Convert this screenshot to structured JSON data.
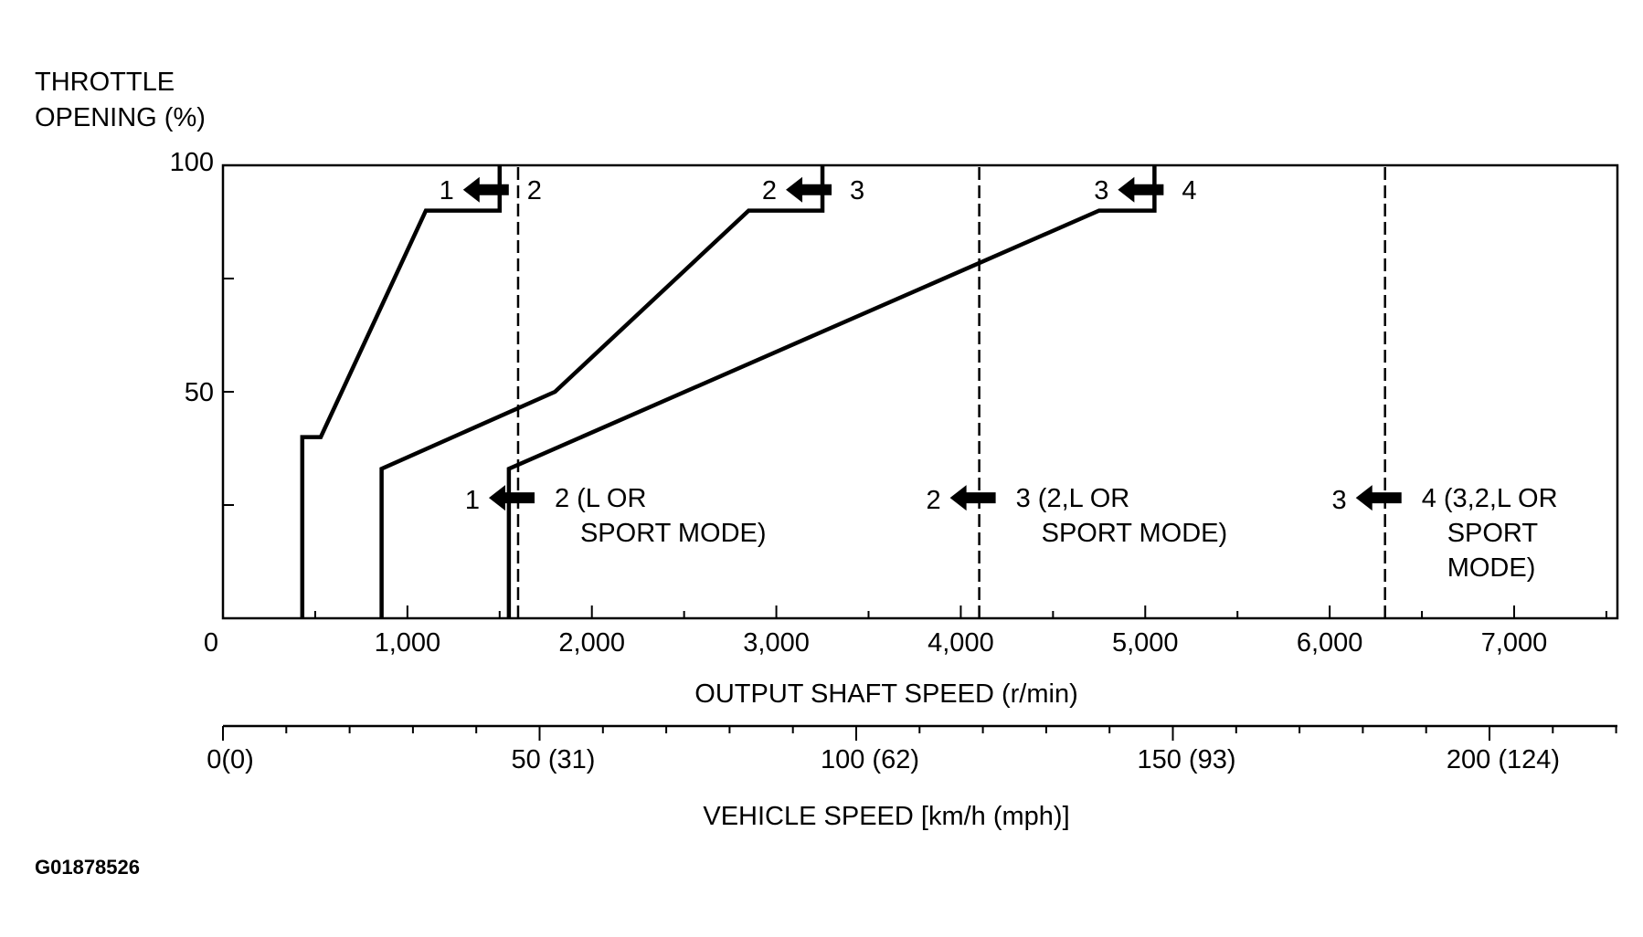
{
  "chart_data": {
    "type": "line",
    "ylabel_lines": [
      "THROTTLE",
      "OPENING (%)"
    ],
    "xlabel": "OUTPUT SHAFT SPEED (r/min)",
    "x2label": "VEHICLE SPEED [km/h (mph)]",
    "xlim": [
      0,
      7700
    ],
    "ylim": [
      0,
      100
    ],
    "x_ticks": [
      {
        "value": 0,
        "label": "0"
      },
      {
        "value": 1000,
        "label": "1,000"
      },
      {
        "value": 2000,
        "label": "2,000"
      },
      {
        "value": 3000,
        "label": "3,000"
      },
      {
        "value": 4000,
        "label": "4,000"
      },
      {
        "value": 5000,
        "label": "5,000"
      },
      {
        "value": 6000,
        "label": "6,000"
      },
      {
        "value": 7000,
        "label": "7,000"
      }
    ],
    "y_ticks": [
      {
        "value": 50,
        "label": "50"
      },
      {
        "value": 100,
        "label": "100"
      }
    ],
    "vehicle_speed_ticks": [
      {
        "kmh": 0,
        "label": "0(0)"
      },
      {
        "kmh": 50,
        "label": "50 (31)"
      },
      {
        "kmh": 100,
        "label": "100 (62)"
      },
      {
        "kmh": 150,
        "label": "150 (93)"
      },
      {
        "kmh": 200,
        "label": "200 (124)"
      }
    ],
    "vehicle_speed_max_kmh": 220,
    "upshift_lines": [
      {
        "id": "1-2",
        "points": [
          [
            430,
            0
          ],
          [
            430,
            40
          ],
          [
            530,
            40
          ],
          [
            1100,
            90
          ],
          [
            1500,
            90
          ],
          [
            1500,
            100
          ]
        ]
      },
      {
        "id": "2-3",
        "points": [
          [
            860,
            0
          ],
          [
            860,
            33
          ],
          [
            1800,
            50
          ],
          [
            2850,
            90
          ],
          [
            3250,
            90
          ],
          [
            3250,
            100
          ]
        ]
      },
      {
        "id": "3-4",
        "points": [
          [
            1550,
            0
          ],
          [
            1550,
            33
          ],
          [
            4750,
            90
          ],
          [
            5050,
            90
          ],
          [
            5050,
            100
          ]
        ]
      }
    ],
    "downshift_lines": [
      {
        "id": "2-1",
        "points": [
          [
            1600,
            0
          ],
          [
            1600,
            100
          ]
        ]
      },
      {
        "id": "3-2",
        "points": [
          [
            4100,
            0
          ],
          [
            4100,
            100
          ]
        ]
      },
      {
        "id": "4-3",
        "points": [
          [
            6300,
            0
          ],
          [
            6300,
            100
          ]
        ]
      }
    ],
    "top_annotations": [
      {
        "from": "1",
        "to": "2",
        "x": 1500,
        "y": 95
      },
      {
        "from": "2",
        "to": "3",
        "x": 3250,
        "y": 95
      },
      {
        "from": "3",
        "to": "4",
        "x": 5050,
        "y": 95
      }
    ],
    "mode_annotations": [
      {
        "from": "1",
        "to": "2",
        "lines": [
          "2 (L OR",
          "SPORT MODE)"
        ],
        "x": 1600,
        "y": 27
      },
      {
        "from": "2",
        "to": "3",
        "lines": [
          "3 (2,L OR",
          "SPORT MODE)"
        ],
        "x": 4100,
        "y": 27
      },
      {
        "from": "3",
        "to": "4",
        "lines": [
          "4 (3,2,L OR",
          "SPORT",
          "MODE)"
        ],
        "x": 6300,
        "y": 27
      }
    ],
    "figure_id": "G01878526"
  }
}
